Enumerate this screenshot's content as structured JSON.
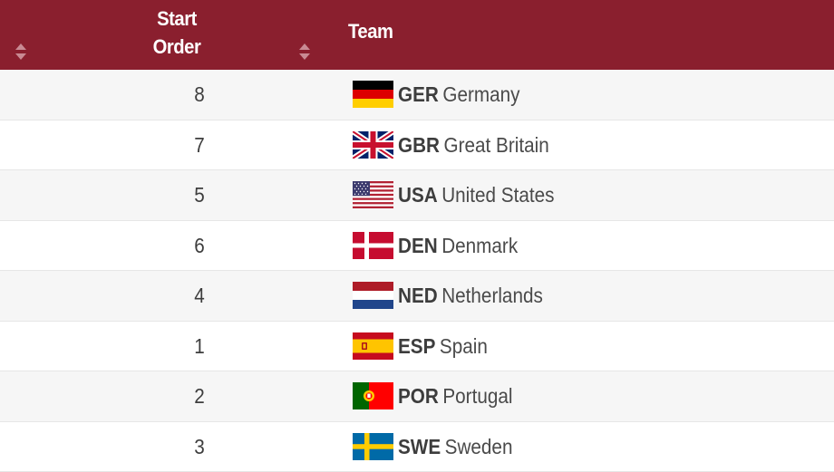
{
  "header": {
    "start_order_line1": "Start",
    "start_order_line2": "Order",
    "team": "Team",
    "background": "#8a1f2e"
  },
  "rows": [
    {
      "order": "8",
      "code": "GER",
      "name": "Germany",
      "flag": "germany-flag-icon"
    },
    {
      "order": "7",
      "code": "GBR",
      "name": "Great Britain",
      "flag": "great-britain-flag-icon"
    },
    {
      "order": "5",
      "code": "USA",
      "name": "United States",
      "flag": "usa-flag-icon"
    },
    {
      "order": "6",
      "code": "DEN",
      "name": "Denmark",
      "flag": "denmark-flag-icon"
    },
    {
      "order": "4",
      "code": "NED",
      "name": "Netherlands",
      "flag": "netherlands-flag-icon"
    },
    {
      "order": "1",
      "code": "ESP",
      "name": "Spain",
      "flag": "spain-flag-icon"
    },
    {
      "order": "2",
      "code": "POR",
      "name": "Portugal",
      "flag": "portugal-flag-icon"
    },
    {
      "order": "3",
      "code": "SWE",
      "name": "Sweden",
      "flag": "sweden-flag-icon"
    }
  ]
}
